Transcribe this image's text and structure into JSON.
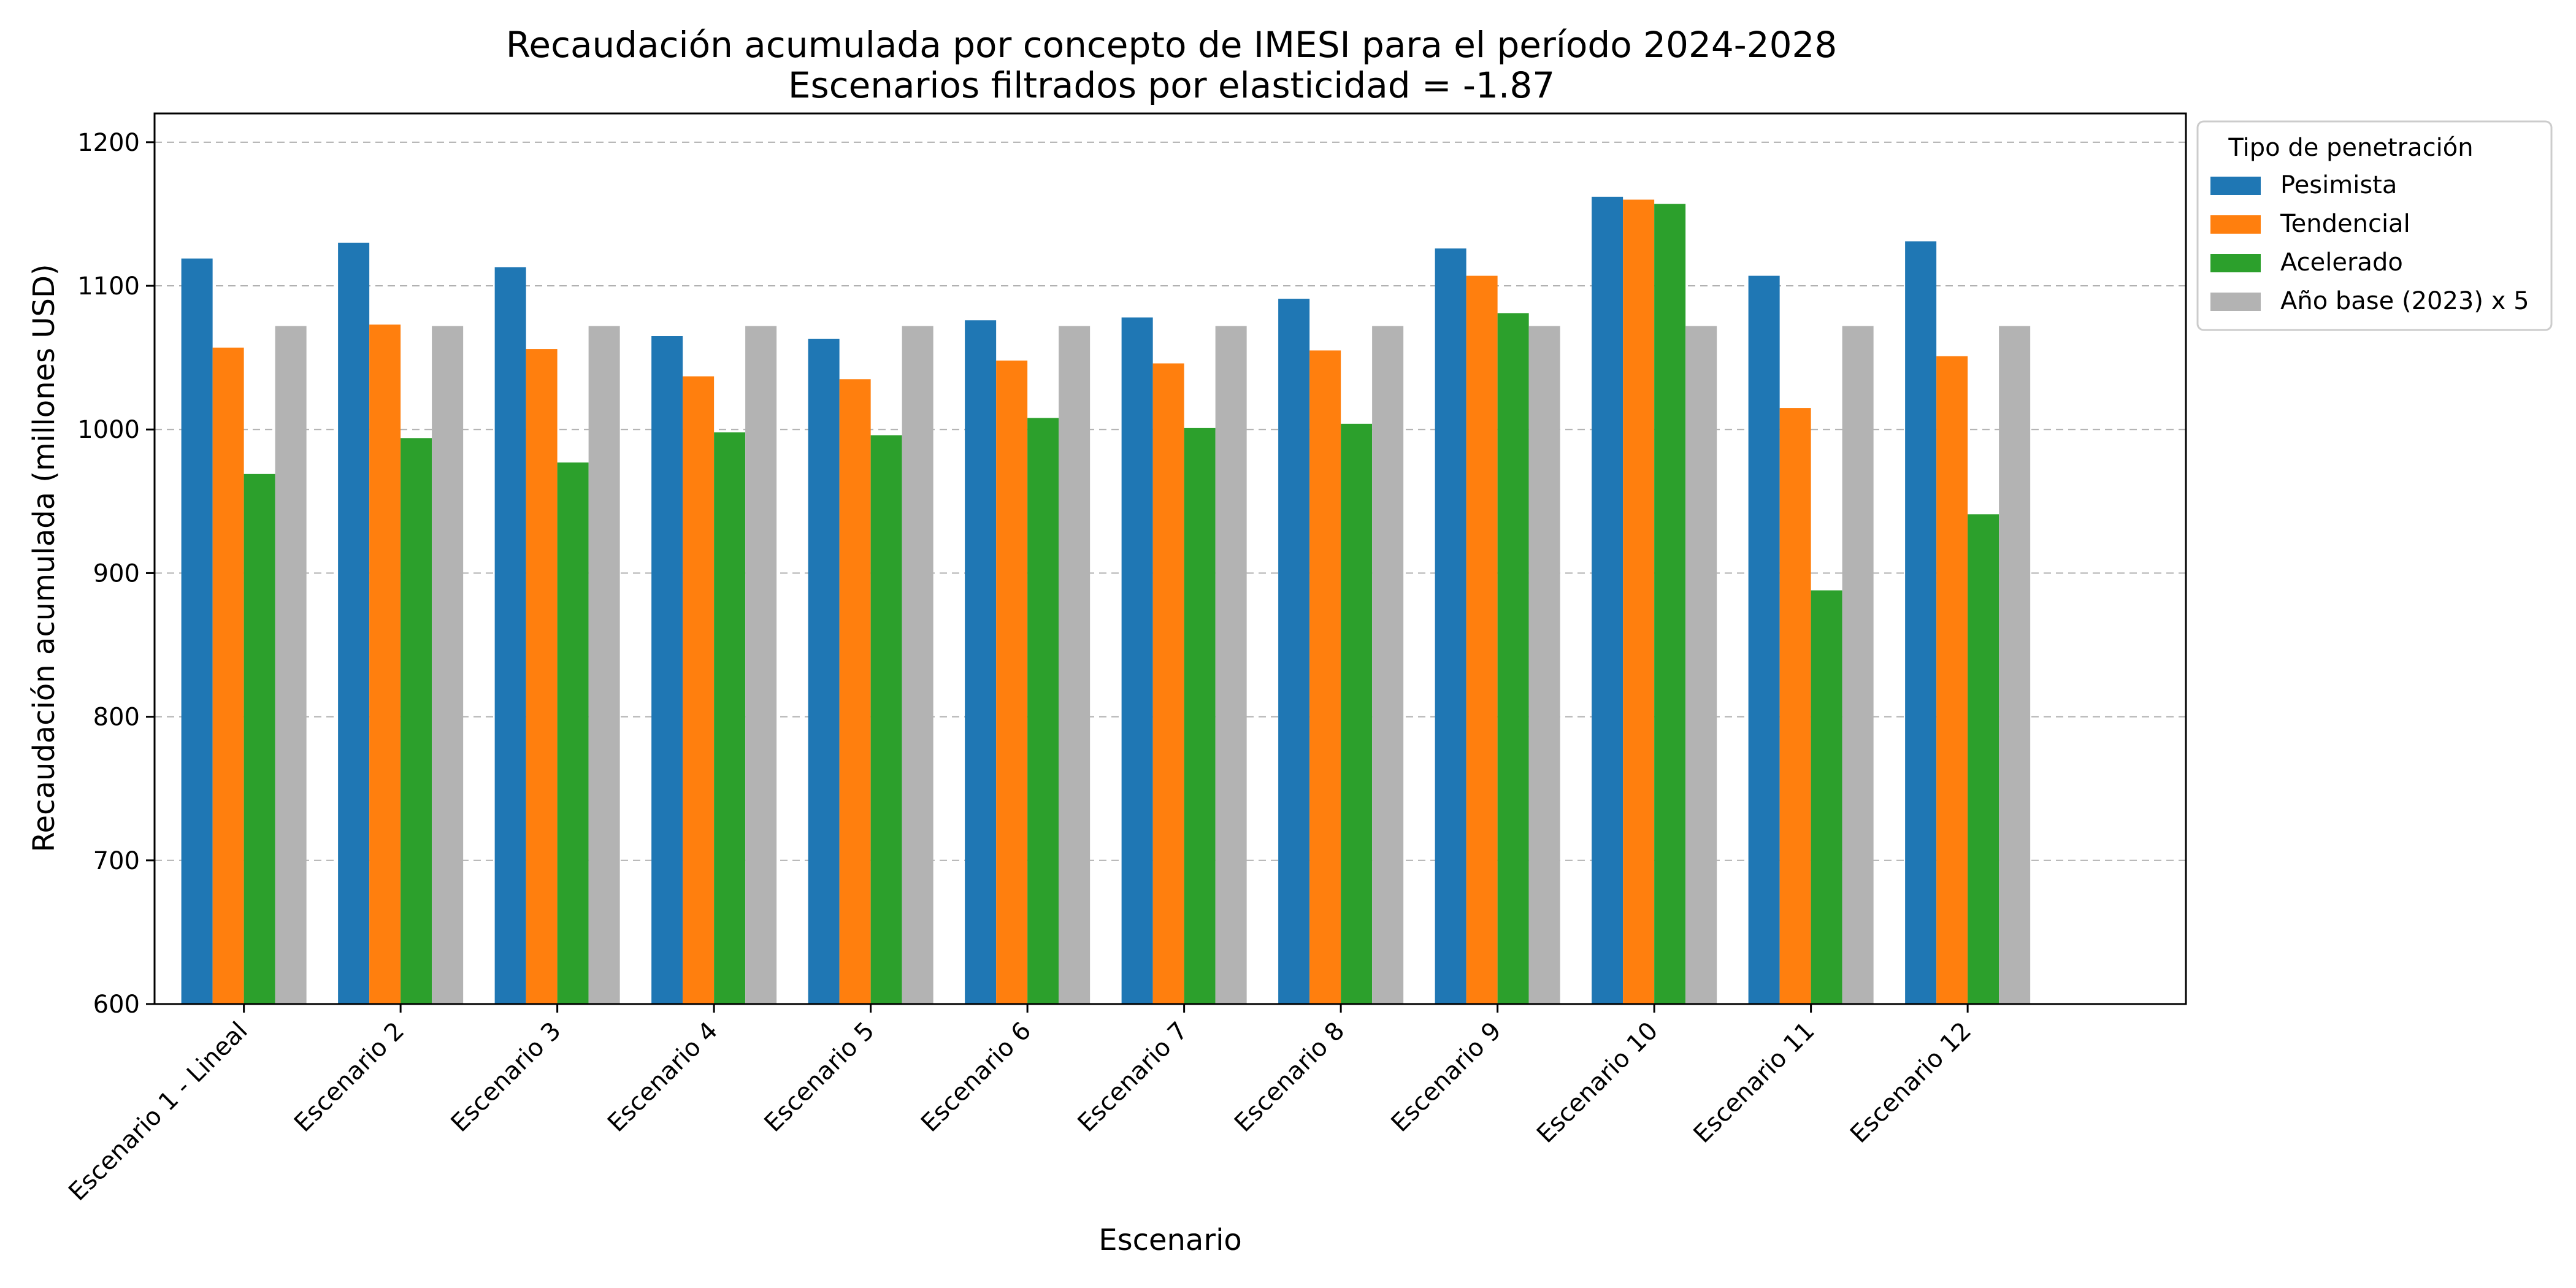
{
  "chart_data": {
    "type": "bar",
    "title": "Recaudación acumulada por concepto de IMESI para el período 2024-2028",
    "subtitle": "Escenarios filtrados por elasticidad = -1.87",
    "xlabel": "Escenario",
    "ylabel": "Recaudación acumulada (millones USD)",
    "ylim": [
      600,
      1220
    ],
    "yticks": [
      600,
      700,
      800,
      900,
      1000,
      1100,
      1200
    ],
    "grid": "y-dashed",
    "legend_title": "Tipo de penetración",
    "legend_position": "outside-top-right",
    "categories": [
      "Escenario 1 - Lineal",
      "Escenario 2",
      "Escenario 3",
      "Escenario 4",
      "Escenario 5",
      "Escenario 6",
      "Escenario 7",
      "Escenario 8",
      "Escenario 9",
      "Escenario 10",
      "Escenario 11",
      "Escenario 12"
    ],
    "series": [
      {
        "name": "Pesimista",
        "color": "#1f77b4",
        "values": [
          1119,
          1130,
          1113,
          1065,
          1063,
          1076,
          1078,
          1091,
          1126,
          1162,
          1107,
          1131
        ]
      },
      {
        "name": "Tendencial",
        "color": "#ff7f0e",
        "values": [
          1057,
          1073,
          1056,
          1037,
          1035,
          1048,
          1046,
          1055,
          1107,
          1160,
          1015,
          1051
        ]
      },
      {
        "name": "Acelerado",
        "color": "#2ca02c",
        "values": [
          969,
          994,
          977,
          998,
          996,
          1008,
          1001,
          1004,
          1081,
          1157,
          888,
          941
        ]
      },
      {
        "name": "Año base (2023) x 5",
        "color": "#b3b3b3",
        "values": [
          1072,
          1072,
          1072,
          1072,
          1072,
          1072,
          1072,
          1072,
          1072,
          1072,
          1072,
          1072
        ]
      }
    ]
  }
}
